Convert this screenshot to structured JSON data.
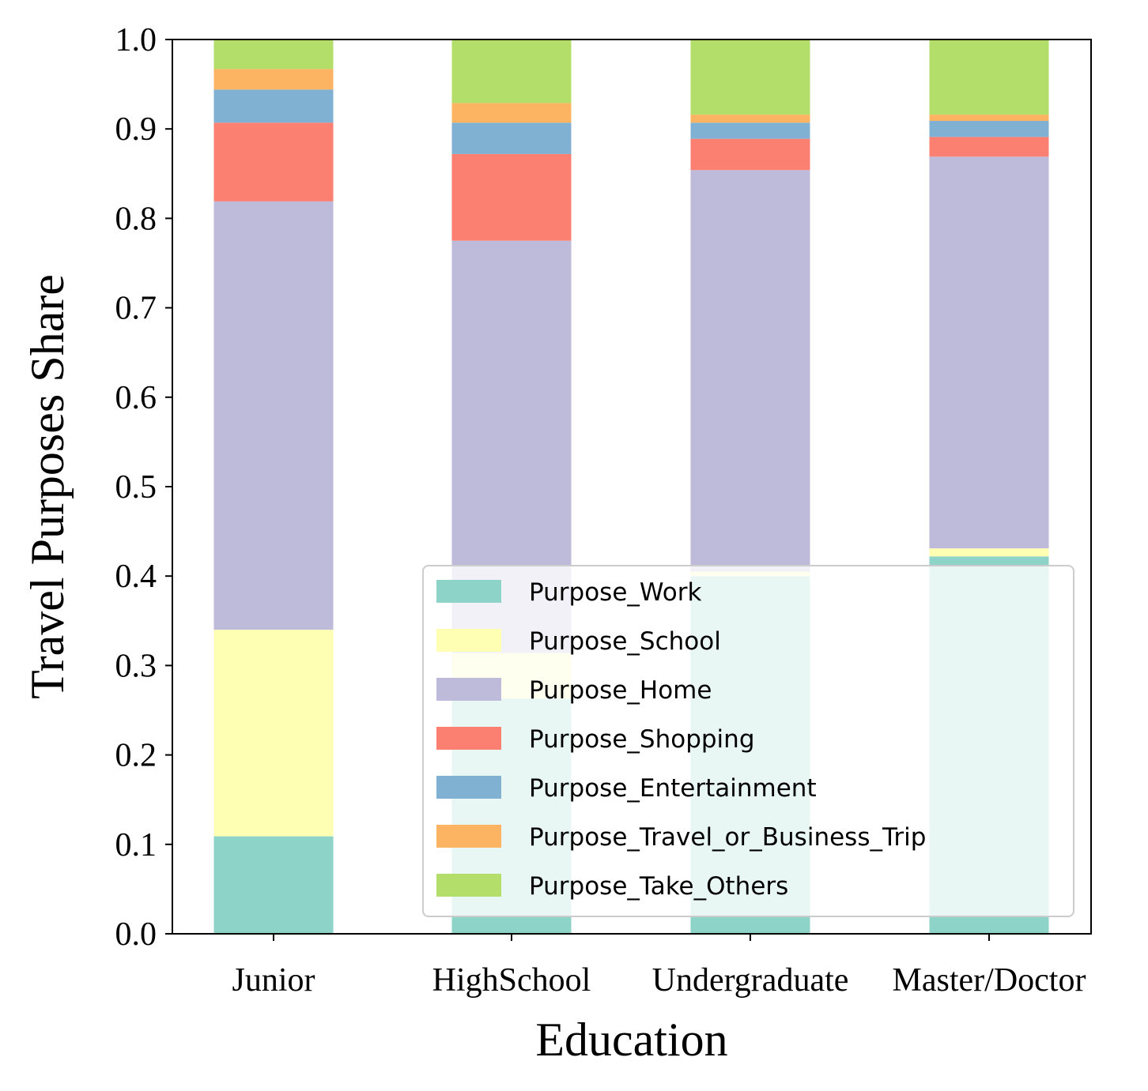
{
  "chart_data": {
    "type": "bar",
    "stacked": true,
    "xlabel": "Education",
    "ylabel": "Travel Purposes Share",
    "ylim": [
      0,
      1.0
    ],
    "yticks": [
      "0.0",
      "0.1",
      "0.2",
      "0.3",
      "0.4",
      "0.5",
      "0.6",
      "0.7",
      "0.8",
      "0.9",
      "1.0"
    ],
    "categories": [
      "Junior",
      "HighSchool",
      "Undergraduate",
      "Master/Doctor"
    ],
    "series": [
      {
        "name": "Purpose_Work",
        "color": "#8dd3c7",
        "values": [
          0.109,
          0.263,
          0.4,
          0.422
        ]
      },
      {
        "name": "Purpose_School",
        "color": "#ffffb3",
        "values": [
          0.231,
          0.051,
          0.005,
          0.009
        ]
      },
      {
        "name": "Purpose_Home",
        "color": "#bebada",
        "values": [
          0.479,
          0.461,
          0.449,
          0.438
        ]
      },
      {
        "name": "Purpose_Shopping",
        "color": "#fb8072",
        "values": [
          0.088,
          0.097,
          0.035,
          0.022
        ]
      },
      {
        "name": "Purpose_Entertainment",
        "color": "#80b1d3",
        "values": [
          0.037,
          0.035,
          0.018,
          0.018
        ]
      },
      {
        "name": "Purpose_Travel_or_Business_Trip",
        "color": "#fdb462",
        "values": [
          0.023,
          0.022,
          0.009,
          0.007
        ]
      },
      {
        "name": "Purpose_Take_Others",
        "color": "#b3de69",
        "values": [
          0.033,
          0.071,
          0.084,
          0.084
        ]
      }
    ],
    "legend_position": "lower-right",
    "grid": false
  }
}
